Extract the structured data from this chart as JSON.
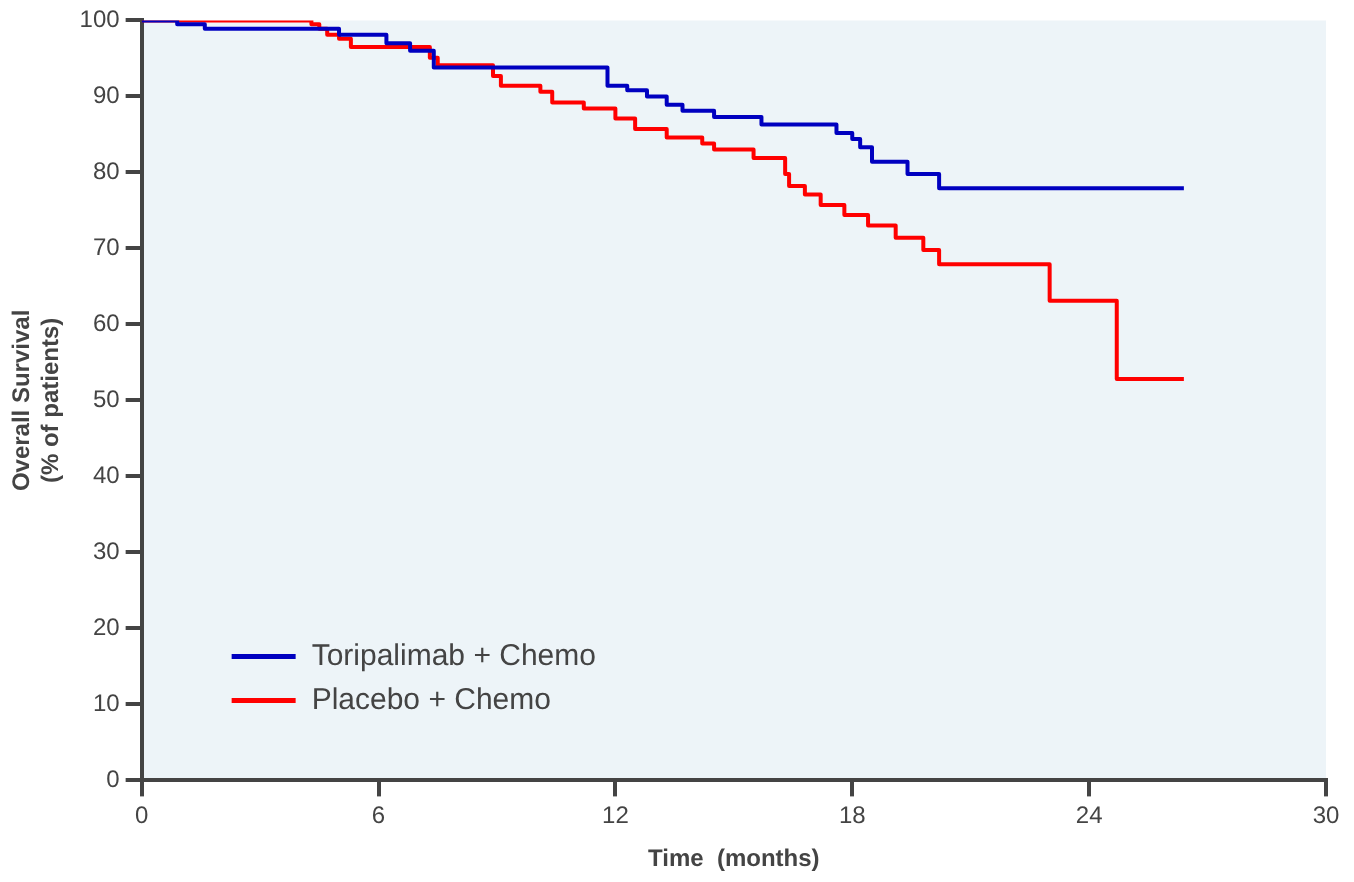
{
  "chart_data": {
    "type": "step",
    "xlabel": "Time  (months)",
    "ylabel": "Overall Survival\n(% of patients)",
    "xlim": [
      0,
      30
    ],
    "xticks": [
      0,
      6,
      12,
      18,
      24,
      30
    ],
    "ylim": [
      0,
      100
    ],
    "yticks": [
      0,
      10,
      20,
      30,
      40,
      50,
      60,
      70,
      80,
      90,
      100
    ],
    "grid": false,
    "legend": "bottom left",
    "series": [
      {
        "name": "Toripalimab + Chemo",
        "color": "#0000c0",
        "x": [
          0,
          0.9,
          1.6,
          5.0,
          6.2,
          6.8,
          7.4,
          11.8,
          12.3,
          12.8,
          13.3,
          13.7,
          14.5,
          15.7,
          17.6,
          18.0,
          18.2,
          18.5,
          19.4,
          20.2,
          26.4
        ],
        "values": [
          100,
          99.5,
          98.9,
          98.1,
          97.0,
          96.0,
          93.8,
          91.4,
          90.8,
          90.0,
          88.9,
          88.1,
          87.3,
          86.3,
          85.2,
          84.4,
          83.3,
          81.4,
          79.8,
          77.9,
          77.9
        ]
      },
      {
        "name": "Placebo + Chemo",
        "color": "#ff0000",
        "x": [
          0,
          4.3,
          4.5,
          4.7,
          5.0,
          5.3,
          7.3,
          7.5,
          8.9,
          9.1,
          10.1,
          10.4,
          11.2,
          12.0,
          12.5,
          13.3,
          14.2,
          14.5,
          15.5,
          16.3,
          16.4,
          16.8,
          17.2,
          17.8,
          18.4,
          19.1,
          19.8,
          20.2,
          23.0,
          24.7,
          26.4
        ],
        "values": [
          100,
          99.5,
          98.9,
          98.1,
          97.6,
          96.5,
          95.1,
          94.1,
          92.7,
          91.4,
          90.6,
          89.2,
          88.4,
          87.1,
          85.7,
          84.6,
          83.8,
          83.0,
          81.9,
          79.8,
          78.2,
          77.1,
          75.7,
          74.4,
          73.0,
          71.4,
          69.8,
          67.9,
          63.1,
          52.8,
          52.8
        ]
      }
    ]
  }
}
